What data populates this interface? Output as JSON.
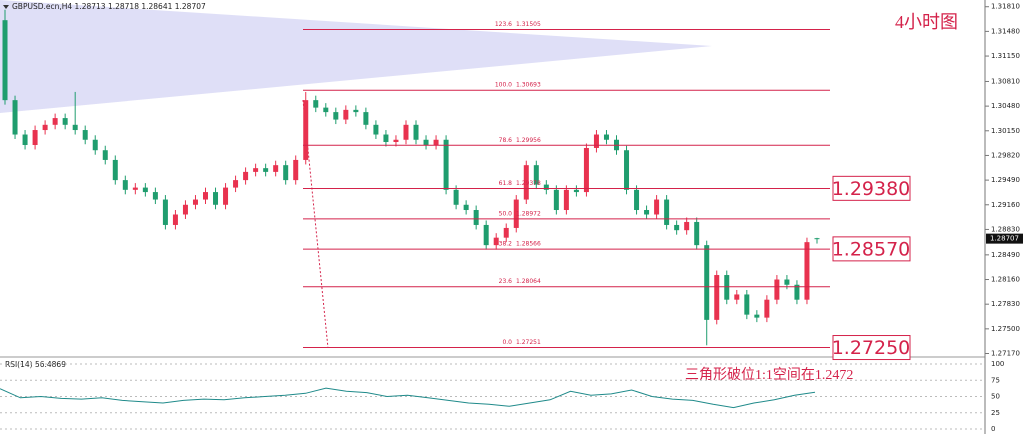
{
  "chart_data": [
    {
      "type": "candlestick",
      "title": "GBPUSD.ecn,H4  1.28713 1.28718 1.28641 1.28707",
      "annotations": [
        "4小时图",
        "三角形破位1:1空间在1.2472"
      ],
      "up_color": "#e8324f",
      "down_color": "#1f9d6e",
      "level_color": "#d4224a",
      "ylim": [
        1.2715,
        1.319
      ],
      "yticks": [
        {
          "value": 1.3181,
          "label": "1.31810"
        },
        {
          "value": 1.3148,
          "label": "1.31480"
        },
        {
          "value": 1.3115,
          "label": "1.31150"
        },
        {
          "value": 1.3081,
          "label": "1.30810"
        },
        {
          "value": 1.3048,
          "label": "1.30480"
        },
        {
          "value": 1.3015,
          "label": "1.30150"
        },
        {
          "value": 1.2982,
          "label": "1.29820"
        },
        {
          "value": 1.2949,
          "label": "1.29490"
        },
        {
          "value": 1.2916,
          "label": "1.29160"
        },
        {
          "value": 1.2883,
          "label": "1.28830"
        },
        {
          "value": 1.2849,
          "label": "1.28490"
        },
        {
          "value": 1.2816,
          "label": "1.28160"
        },
        {
          "value": 1.2783,
          "label": "1.27830"
        },
        {
          "value": 1.275,
          "label": "1.27500"
        },
        {
          "value": 1.2717,
          "label": "1.27170"
        }
      ],
      "current_price": 1.28707,
      "open": [
        1.3163,
        1.3056,
        1.301,
        1.2996,
        1.3016,
        1.3023,
        1.3032,
        1.3023,
        1.3016,
        1.3003,
        1.2989,
        1.2976,
        1.2949,
        1.2936,
        1.2939,
        1.2933,
        1.2923,
        1.2889,
        1.2903,
        1.2916,
        1.2923,
        1.2933,
        1.2916,
        1.2939,
        1.2949,
        1.296,
        1.2965,
        1.296,
        1.2969,
        1.2949,
        1.2976,
        1.3056,
        1.3046,
        1.304,
        1.303,
        1.3043,
        1.304,
        1.3023,
        1.301,
        1.3,
        1.3003,
        1.3023,
        1.3003,
        1.2996,
        1.3003,
        1.2936,
        1.2916,
        1.2909,
        1.2889,
        1.2862,
        1.2872,
        1.2885,
        1.2923,
        1.2969,
        1.2943,
        1.2936,
        1.2909,
        1.2936,
        1.2933,
        1.2992,
        1.301,
        1.3003,
        1.2989,
        1.2936,
        1.2909,
        1.2903,
        1.2923,
        1.2889,
        1.2882,
        1.2893,
        1.2862,
        1.2762,
        1.2822,
        1.2789,
        1.2796,
        1.2769,
        1.2765,
        1.2789,
        1.2816,
        1.2809,
        1.2789,
        1.28713
      ],
      "high": [
        1.3177,
        1.3062,
        1.3016,
        1.3022,
        1.3029,
        1.3038,
        1.3038,
        1.3067,
        1.3022,
        1.3009,
        1.2995,
        1.2982,
        1.2955,
        1.2945,
        1.2945,
        1.2939,
        1.2929,
        1.2909,
        1.2922,
        1.2929,
        1.2939,
        1.2939,
        1.2945,
        1.2955,
        1.2966,
        1.2971,
        1.2971,
        1.2975,
        1.2975,
        1.2982,
        1.3067,
        1.3062,
        1.3052,
        1.3046,
        1.3049,
        1.3049,
        1.3046,
        1.3029,
        1.3016,
        1.3009,
        1.3029,
        1.3029,
        1.3009,
        1.3009,
        1.3009,
        1.2942,
        1.2922,
        1.2915,
        1.2895,
        1.2878,
        1.2891,
        1.2929,
        1.2975,
        1.2975,
        1.2949,
        1.2942,
        1.2942,
        1.2942,
        1.2998,
        1.3016,
        1.3016,
        1.3009,
        1.2995,
        1.2942,
        1.2915,
        1.2929,
        1.2929,
        1.2895,
        1.2899,
        1.2899,
        1.2868,
        1.2828,
        1.2828,
        1.2802,
        1.2802,
        1.2775,
        1.2795,
        1.2822,
        1.2822,
        1.2815,
        1.2872,
        1.28718
      ],
      "low": [
        1.305,
        1.3004,
        1.299,
        1.299,
        1.301,
        1.3017,
        1.3017,
        1.301,
        1.2997,
        1.2983,
        1.297,
        1.2943,
        1.293,
        1.293,
        1.2927,
        1.2917,
        1.2883,
        1.2883,
        1.2897,
        1.291,
        1.2917,
        1.291,
        1.291,
        1.2933,
        1.2943,
        1.2954,
        1.2954,
        1.2954,
        1.2943,
        1.2943,
        1.297,
        1.304,
        1.3034,
        1.3024,
        1.3024,
        1.3034,
        1.3017,
        1.3004,
        1.2994,
        1.2994,
        1.2997,
        1.2997,
        1.299,
        1.299,
        1.293,
        1.291,
        1.2903,
        1.2883,
        1.2856,
        1.2856,
        1.2866,
        1.2879,
        1.2917,
        1.2937,
        1.293,
        1.2903,
        1.2903,
        1.2927,
        1.2927,
        1.2986,
        1.2997,
        1.2983,
        1.293,
        1.2903,
        1.2897,
        1.2897,
        1.2883,
        1.2876,
        1.2876,
        1.2856,
        1.2728,
        1.2756,
        1.2783,
        1.2783,
        1.2763,
        1.2759,
        1.2759,
        1.2783,
        1.2803,
        1.2783,
        1.2783,
        1.28641
      ],
      "close": [
        1.3056,
        1.301,
        1.2996,
        1.3016,
        1.3023,
        1.3032,
        1.3023,
        1.3016,
        1.3003,
        1.2989,
        1.2976,
        1.2949,
        1.2936,
        1.2939,
        1.2933,
        1.2923,
        1.2889,
        1.2903,
        1.2916,
        1.2923,
        1.2933,
        1.2916,
        1.2939,
        1.2949,
        1.296,
        1.2965,
        1.296,
        1.2969,
        1.2949,
        1.2976,
        1.3056,
        1.3046,
        1.304,
        1.303,
        1.3043,
        1.304,
        1.3023,
        1.301,
        1.3,
        1.3003,
        1.3023,
        1.3003,
        1.2996,
        1.3003,
        1.2936,
        1.2916,
        1.2909,
        1.2889,
        1.2862,
        1.2872,
        1.2885,
        1.2923,
        1.2969,
        1.2943,
        1.2936,
        1.2909,
        1.2936,
        1.2933,
        1.2992,
        1.301,
        1.3003,
        1.2989,
        1.2936,
        1.2909,
        1.2903,
        1.2923,
        1.2889,
        1.2882,
        1.2893,
        1.2862,
        1.2762,
        1.2822,
        1.2789,
        1.2796,
        1.2769,
        1.2765,
        1.2789,
        1.2816,
        1.2809,
        1.2789,
        1.2866,
        1.28707
      ],
      "fib_levels": [
        {
          "ratio": "123.6",
          "price": 1.31505
        },
        {
          "ratio": "100.0",
          "price": 1.30693
        },
        {
          "ratio": "78.6",
          "price": 1.29956
        },
        {
          "ratio": "61.8",
          "price": 1.29378
        },
        {
          "ratio": "50.0",
          "price": 1.28972
        },
        {
          "ratio": "38.2",
          "price": 1.28566
        },
        {
          "ratio": "23.6",
          "price": 1.28064
        },
        {
          "ratio": "0.0",
          "price": 1.27251
        }
      ],
      "key_levels": [
        {
          "value": 1.2938,
          "label": "1.29380"
        },
        {
          "value": 1.2857,
          "label": "1.28570"
        },
        {
          "value": 1.2725,
          "label": "1.27250"
        }
      ]
    },
    {
      "type": "line",
      "title": "RSI(14) 56.4869",
      "color": "#1f8a8a",
      "ylim": [
        0,
        100
      ],
      "yticks": [
        0,
        25,
        50,
        75,
        100
      ],
      "grid": true,
      "values": [
        62,
        48,
        50,
        47,
        46,
        48,
        44,
        42,
        40,
        44,
        46,
        45,
        48,
        50,
        52,
        55,
        63,
        58,
        56,
        50,
        52,
        48,
        44,
        40,
        38,
        35,
        40,
        45,
        58,
        52,
        54,
        60,
        50,
        46,
        44,
        38,
        33,
        40,
        45,
        52,
        56.49
      ]
    }
  ]
}
